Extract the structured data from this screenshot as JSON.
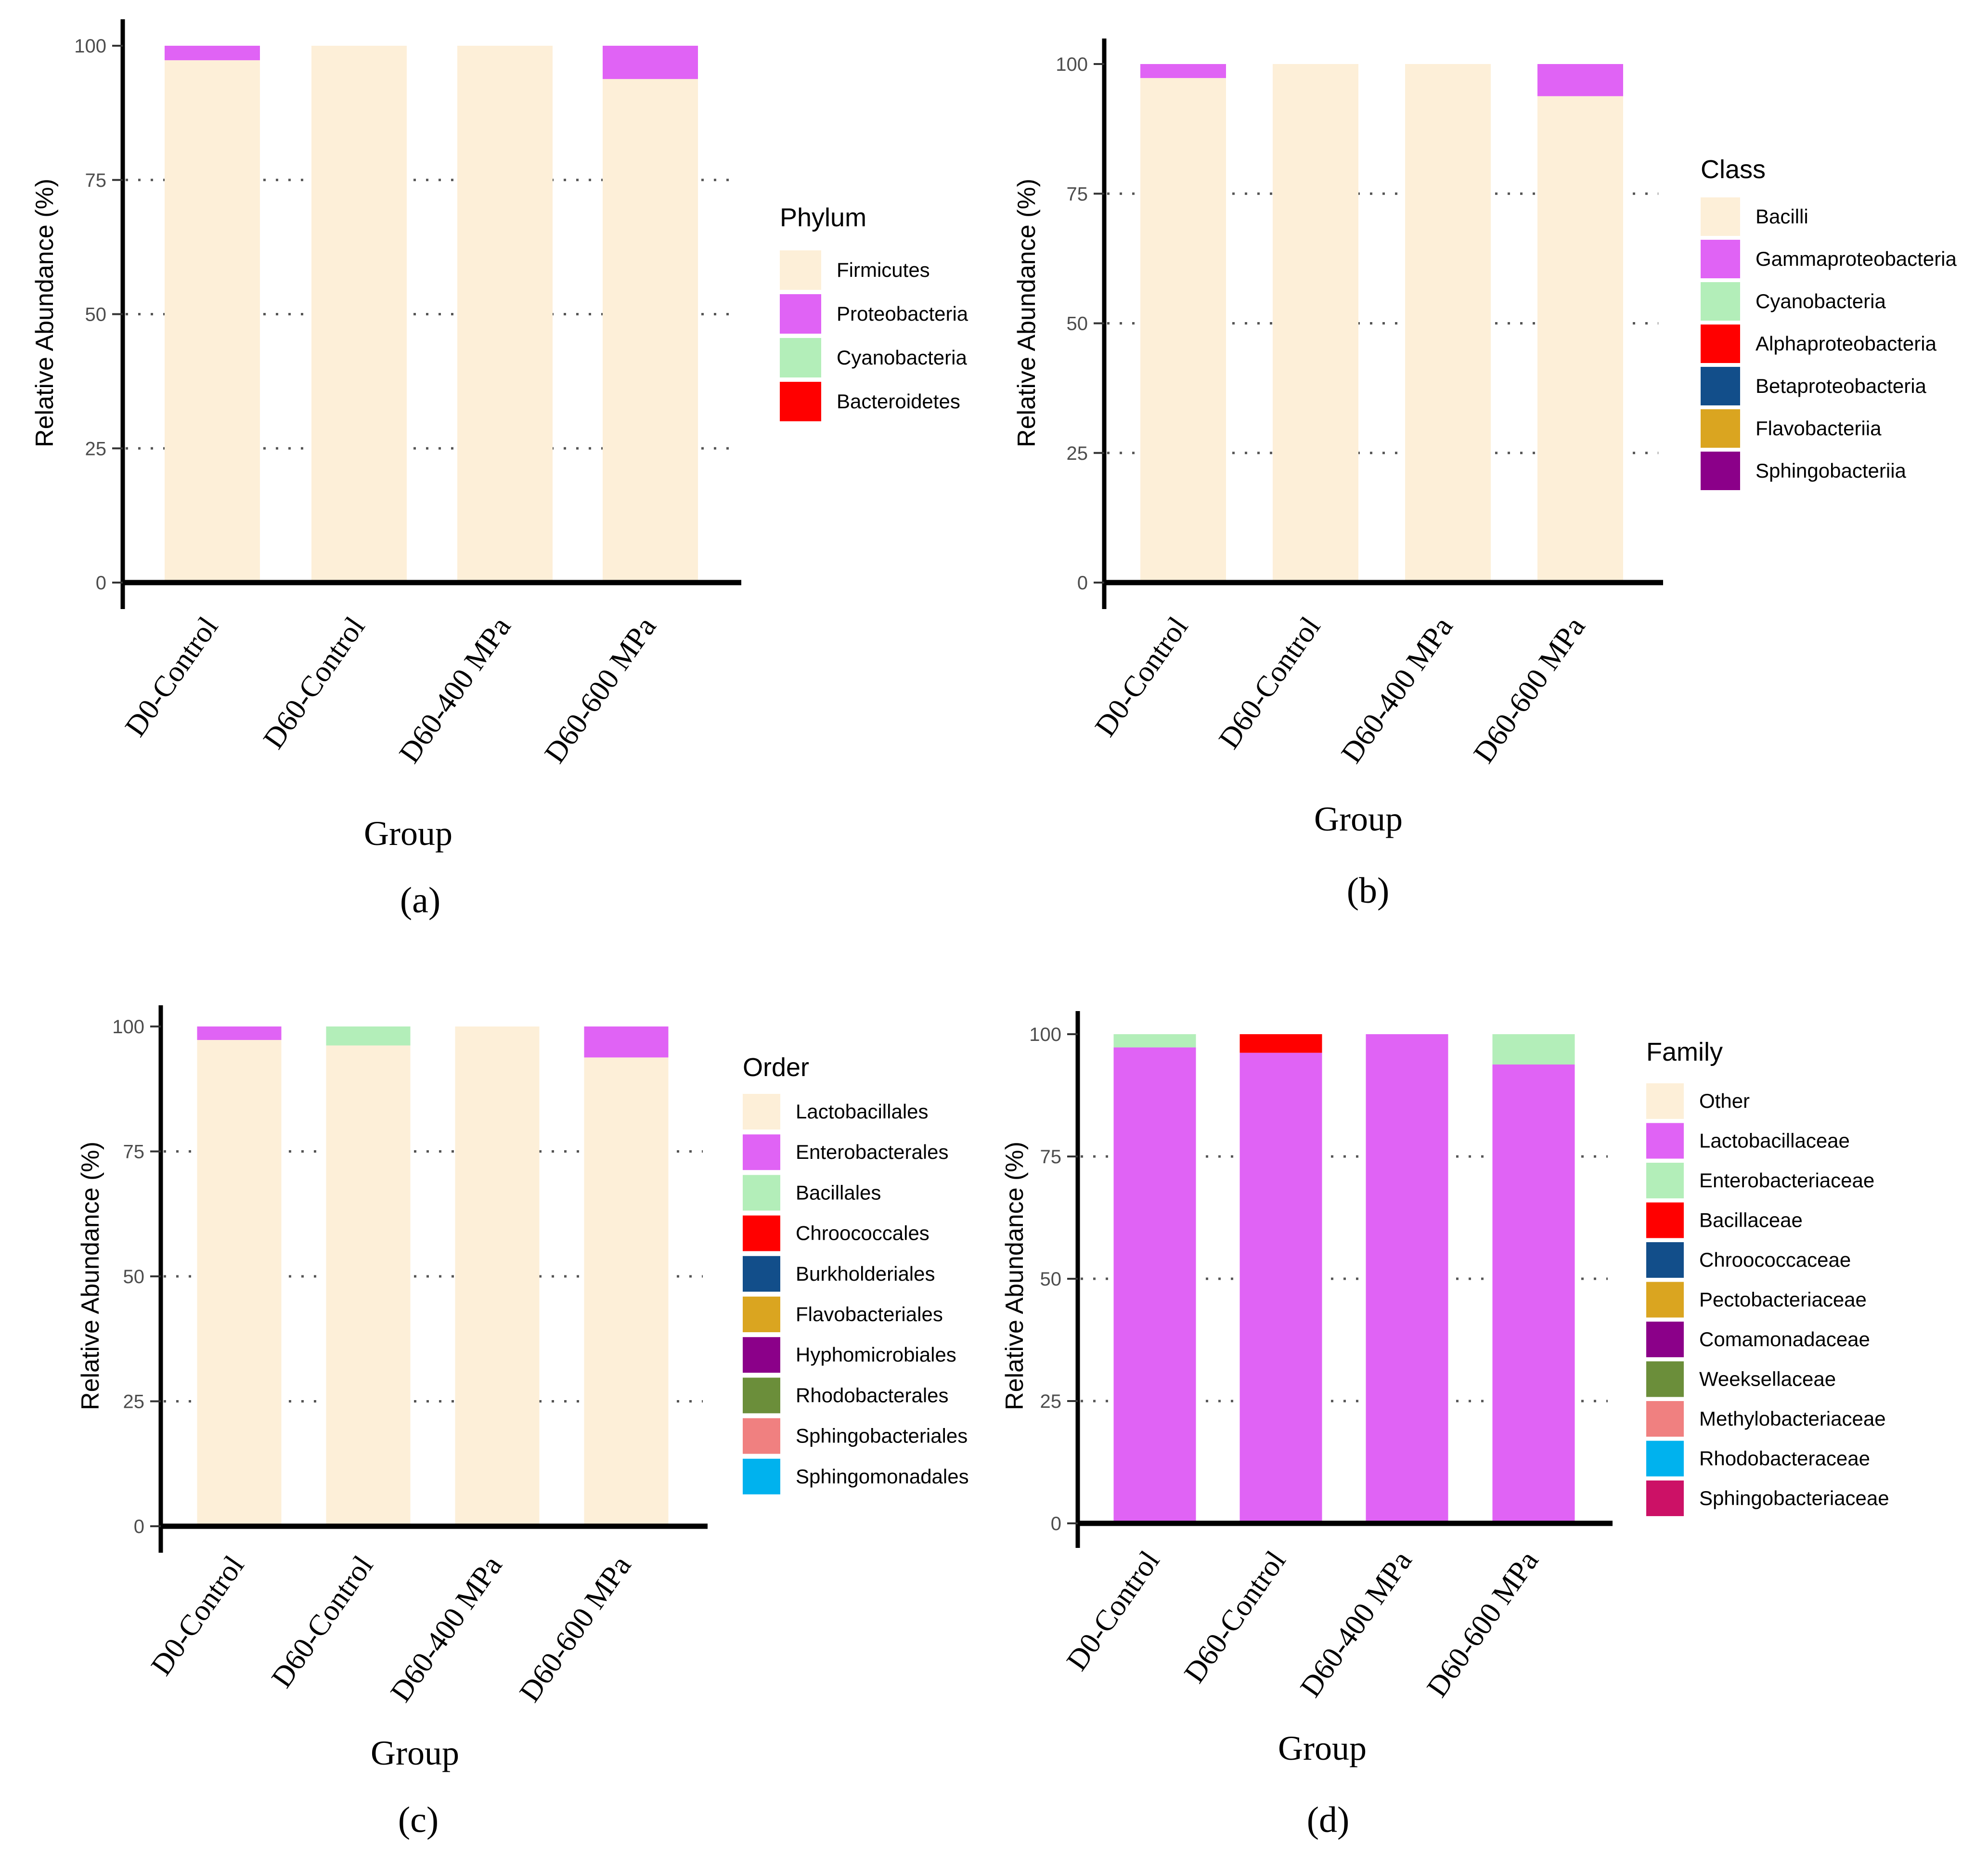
{
  "chart_data": [
    {
      "type": "bar",
      "stacked": true,
      "panel_label": "(a)",
      "title": "",
      "xlabel": "Group",
      "ylabel": "Relative Abundance (%)",
      "ylim": [
        0,
        100
      ],
      "yticks": [
        "0",
        "25",
        "50",
        "75",
        "100"
      ],
      "grid": "dotted horizontal",
      "legend_position": "right",
      "categories": [
        "D0-Control",
        "D60-Control",
        "D60-400 MPa",
        "D60-600 MPa"
      ],
      "legend_title": "Phylum",
      "series": [
        {
          "name": "Firmicutes",
          "color": "#FDEFD8",
          "values": [
            97.3,
            100,
            100,
            93.8
          ]
        },
        {
          "name": "Proteobacteria",
          "color": "#E063F5",
          "values": [
            2.7,
            0,
            0,
            6.2
          ]
        },
        {
          "name": "Cyanobacteria",
          "color": "#B3EEB9",
          "values": [
            0,
            0,
            0,
            0
          ]
        },
        {
          "name": "Bacteroidetes",
          "color": "#FF0000",
          "values": [
            0,
            0,
            0,
            0
          ]
        }
      ]
    },
    {
      "type": "bar",
      "stacked": true,
      "panel_label": "(b)",
      "title": "",
      "xlabel": "Group",
      "ylabel": "Relative Abundance (%)",
      "ylim": [
        0,
        100
      ],
      "yticks": [
        "0",
        "25",
        "50",
        "75",
        "100"
      ],
      "grid": "dotted horizontal",
      "legend_position": "right",
      "categories": [
        "D0-Control",
        "D60-Control",
        "D60-400 MPa",
        "D60-600 MPa"
      ],
      "legend_title": "Class",
      "series": [
        {
          "name": "Bacilli",
          "color": "#FDEFD8",
          "values": [
            97.3,
            100,
            100,
            93.8
          ]
        },
        {
          "name": "Gammaproteobacteria",
          "color": "#E063F5",
          "values": [
            2.7,
            0,
            0,
            6.2
          ]
        },
        {
          "name": "Cyanobacteria",
          "color": "#B3EEB9",
          "values": [
            0,
            0,
            0,
            0
          ]
        },
        {
          "name": "Alphaproteobacteria",
          "color": "#FF0000",
          "values": [
            0,
            0,
            0,
            0
          ]
        },
        {
          "name": "Betaproteobacteria",
          "color": "#124E8A",
          "values": [
            0,
            0,
            0,
            0
          ]
        },
        {
          "name": "Flavobacteriia",
          "color": "#DAA520",
          "values": [
            0,
            0,
            0,
            0
          ]
        },
        {
          "name": "Sphingobacteriia",
          "color": "#8B0089",
          "values": [
            0,
            0,
            0,
            0
          ]
        }
      ]
    },
    {
      "type": "bar",
      "stacked": true,
      "panel_label": "(c)",
      "title": "",
      "xlabel": "Group",
      "ylabel": "Relative Abundance (%)",
      "ylim": [
        0,
        100
      ],
      "yticks": [
        "0",
        "25",
        "50",
        "75",
        "100"
      ],
      "grid": "dotted horizontal",
      "legend_position": "right",
      "categories": [
        "D0-Control",
        "D60-Control",
        "D60-400 MPa",
        "D60-600 MPa"
      ],
      "legend_title": "Order",
      "series": [
        {
          "name": "Lactobacillales",
          "color": "#FDEFD8",
          "values": [
            97.3,
            96.2,
            100,
            93.8
          ]
        },
        {
          "name": "Enterobacterales",
          "color": "#E063F5",
          "values": [
            2.7,
            0,
            0,
            6.2
          ]
        },
        {
          "name": "Bacillales",
          "color": "#B3EEB9",
          "values": [
            0,
            3.8,
            0,
            0
          ]
        },
        {
          "name": "Chroococcales",
          "color": "#FF0000",
          "values": [
            0,
            0,
            0,
            0
          ]
        },
        {
          "name": "Burkholderiales",
          "color": "#124E8A",
          "values": [
            0,
            0,
            0,
            0
          ]
        },
        {
          "name": "Flavobacteriales",
          "color": "#DAA520",
          "values": [
            0,
            0,
            0,
            0
          ]
        },
        {
          "name": "Hyphomicrobiales",
          "color": "#8B0089",
          "values": [
            0,
            0,
            0,
            0
          ]
        },
        {
          "name": "Rhodobacterales",
          "color": "#6B8E3A",
          "values": [
            0,
            0,
            0,
            0
          ]
        },
        {
          "name": "Sphingobacteriales",
          "color": "#F08080",
          "values": [
            0,
            0,
            0,
            0
          ]
        },
        {
          "name": "Sphingomonadales",
          "color": "#00B2EE",
          "values": [
            0,
            0,
            0,
            0
          ]
        }
      ]
    },
    {
      "type": "bar",
      "stacked": true,
      "panel_label": "(d)",
      "title": "",
      "xlabel": "Group",
      "ylabel": "Relative Abundance (%)",
      "ylim": [
        0,
        100
      ],
      "yticks": [
        "0",
        "25",
        "50",
        "75",
        "100"
      ],
      "grid": "dotted horizontal",
      "legend_position": "right",
      "categories": [
        "D0-Control",
        "D60-Control",
        "D60-400 MPa",
        "D60-600 MPa"
      ],
      "legend_title": "Family",
      "series": [
        {
          "name": "Other",
          "color": "#FDEFD8",
          "values": [
            0,
            0,
            0,
            0
          ]
        },
        {
          "name": "Lactobacillaceae",
          "color": "#E063F5",
          "values": [
            97.3,
            96.2,
            100,
            93.8
          ]
        },
        {
          "name": "Enterobacteriaceae",
          "color": "#B3EEB9",
          "values": [
            2.7,
            0,
            0,
            6.2
          ]
        },
        {
          "name": "Bacillaceae",
          "color": "#FF0000",
          "values": [
            0,
            3.8,
            0,
            0
          ]
        },
        {
          "name": "Chroococcaceae",
          "color": "#124E8A",
          "values": [
            0,
            0,
            0,
            0
          ]
        },
        {
          "name": "Pectobacteriaceae",
          "color": "#DAA520",
          "values": [
            0,
            0,
            0,
            0
          ]
        },
        {
          "name": "Comamonadaceae",
          "color": "#8B0089",
          "values": [
            0,
            0,
            0,
            0
          ]
        },
        {
          "name": "Weeksellaceae",
          "color": "#6B8E3A",
          "values": [
            0,
            0,
            0,
            0
          ]
        },
        {
          "name": "Methylobacteriaceae",
          "color": "#F08080",
          "values": [
            0,
            0,
            0,
            0
          ]
        },
        {
          "name": "Rhodobacteraceae",
          "color": "#00B2EE",
          "values": [
            0,
            0,
            0,
            0
          ]
        },
        {
          "name": "Sphingobacteriaceae",
          "color": "#CC1166",
          "values": [
            0,
            0,
            0,
            0
          ]
        }
      ]
    }
  ]
}
